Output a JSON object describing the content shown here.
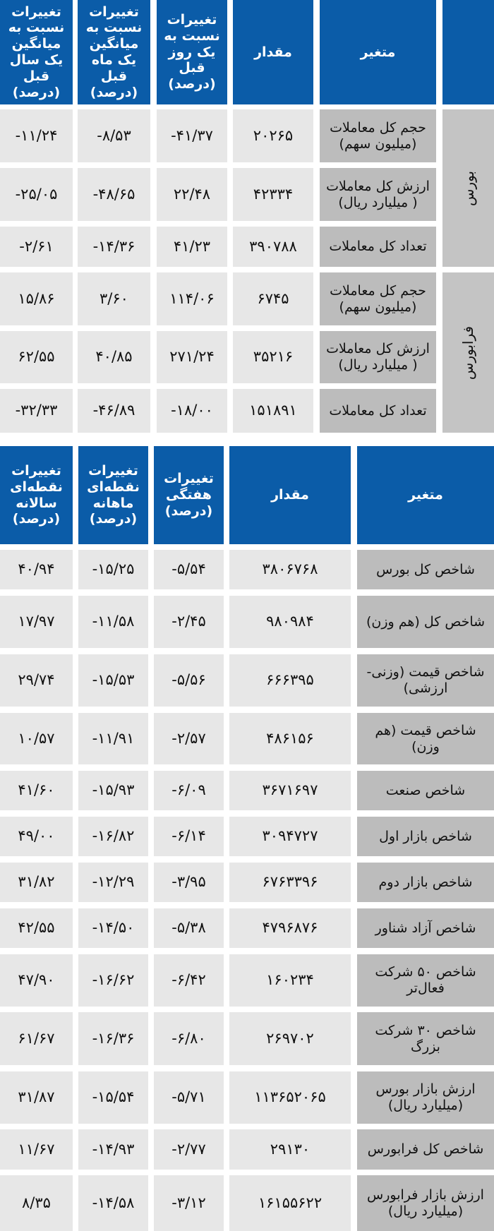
{
  "colors": {
    "header": "#0b5ca8",
    "label_cell": "#bcbcbc",
    "value_cell": "#e7e7e7"
  },
  "table1": {
    "headers": [
      "متغیر",
      "مقدار",
      "تغییرات نسبت به یک روز قبل (درصد)",
      "تغییرات نسبت به میانگین یک ماه قبل (درصد)",
      "تغییرات نسبت به میانگین یک سال قبل (درصد)"
    ],
    "groups": [
      "بورس",
      "فرابورس"
    ],
    "rows": [
      {
        "label": "حجم کل معاملات (میلیون سهم)",
        "values": [
          "۲۰۲۶۵",
          "-۴۱/۳۷",
          "-۸/۵۳",
          "-۱۱/۲۴"
        ]
      },
      {
        "label": "ارزش کل معاملات ( میلیارد ریال)",
        "values": [
          "۴۲۳۳۴",
          "۲۲/۴۸",
          "-۴۸/۶۵",
          "-۲۵/۰۵"
        ]
      },
      {
        "label": "تعداد کل معاملات",
        "values": [
          "۳۹۰۷۸۸",
          "۴۱/۲۳",
          "-۱۴/۳۶",
          "-۲/۶۱"
        ]
      },
      {
        "label": "حجم کل معاملات (میلیون سهم)",
        "values": [
          "۶۷۴۵",
          "۱۱۴/۰۶",
          "۳/۶۰",
          "۱۵/۸۶"
        ]
      },
      {
        "label": "ارزش کل معاملات ( میلیارد ریال)",
        "values": [
          "۳۵۲۱۶",
          "۲۷۱/۲۴",
          "۴۰/۸۵",
          "۶۲/۵۵"
        ]
      },
      {
        "label": "تعداد کل معاملات",
        "values": [
          "۱۵۱۸۹۱",
          "-۱۸/۰۰",
          "-۴۶/۸۹",
          "-۳۲/۳۳"
        ]
      }
    ]
  },
  "table2": {
    "headers": [
      "متغیر",
      "مقدار",
      "تغییرات هفتگی (درصد)",
      "تغییرات نقطه‌ای ماهانه (درصد)",
      "تغییرات نقطه‌ای سالانه (درصد)"
    ],
    "rows": [
      {
        "label": "شاخص کل بورس",
        "values": [
          "۳۸۰۶۷۶۸",
          "-۵/۵۴",
          "-۱۵/۲۵",
          "۴۰/۹۴"
        ]
      },
      {
        "label": "شاخص کل (هم وزن)",
        "values": [
          "۹۸۰۹۸۴",
          "-۲/۴۵",
          "-۱۱/۵۸",
          "۱۷/۹۷"
        ]
      },
      {
        "label": "شاخص قیمت (وزنی- ارزشی)",
        "values": [
          "۶۶۶۳۹۵",
          "-۵/۵۶",
          "-۱۵/۵۳",
          "۲۹/۷۴"
        ]
      },
      {
        "label": "شاخص قیمت (هم وزن)",
        "values": [
          "۴۸۶۱۵۶",
          "-۲/۵۷",
          "-۱۱/۹۱",
          "۱۰/۵۷"
        ]
      },
      {
        "label": "شاخص صنعت",
        "values": [
          "۳۶۷۱۶۹۷",
          "-۶/۰۹",
          "-۱۵/۹۳",
          "۴۱/۶۰"
        ]
      },
      {
        "label": "شاخص بازار اول",
        "values": [
          "۳۰۹۴۷۲۷",
          "-۶/۱۴",
          "-۱۶/۸۲",
          "۴۹/۰۰"
        ]
      },
      {
        "label": "شاخص بازار دوم",
        "values": [
          "۶۷۶۳۳۹۶",
          "-۳/۹۵",
          "-۱۲/۲۹",
          "۳۱/۸۲"
        ]
      },
      {
        "label": "شاخص آزاد شناور",
        "values": [
          "۴۷۹۶۸۷۶",
          "-۵/۳۸",
          "-۱۴/۵۰",
          "۴۲/۵۵"
        ]
      },
      {
        "label": "شاخص ۵۰ شرکت فعال‌تر",
        "values": [
          "۱۶۰۲۳۴",
          "-۶/۴۲",
          "-۱۶/۶۲",
          "۴۷/۹۰"
        ]
      },
      {
        "label": "شاخص ۳۰ شرکت بزرگ",
        "values": [
          "۲۶۹۷۰۲",
          "-۶/۸۰",
          "-۱۶/۳۶",
          "۶۱/۶۷"
        ]
      },
      {
        "label": "ارزش بازار بورس (میلیارد ریال)",
        "values": [
          "۱۱۳۶۵۲۰۶۵",
          "-۵/۷۱",
          "-۱۵/۵۴",
          "۳۱/۸۷"
        ]
      },
      {
        "label": "شاخص کل فرابورس",
        "values": [
          "۲۹۱۳۰",
          "-۲/۷۷",
          "-۱۴/۹۳",
          "۱۱/۶۷"
        ]
      },
      {
        "label": "ارزش بازار فرابورس (میلیارد ریال)",
        "values": [
          "۱۶۱۵۵۶۲۲",
          "-۳/۱۲",
          "-۱۴/۵۸",
          "۸/۳۵"
        ]
      }
    ]
  }
}
